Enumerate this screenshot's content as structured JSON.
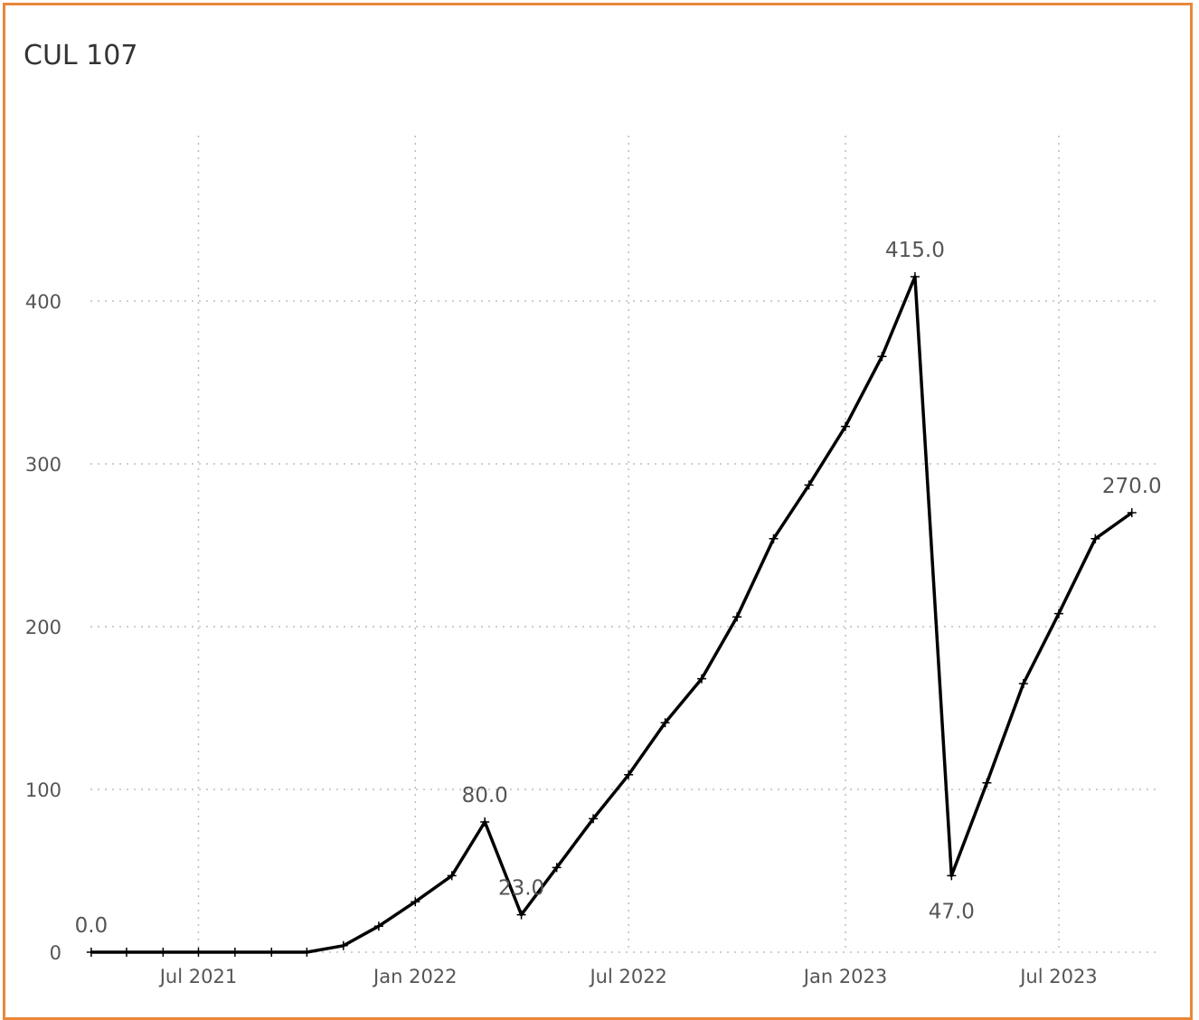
{
  "title": "CUL 107",
  "chart_data": {
    "type": "line",
    "title": "CUL 107",
    "xlabel": "",
    "ylabel": "",
    "ylim": [
      0,
      500
    ],
    "xlim": [
      "2021-03-16",
      "2023-09-15"
    ],
    "y_ticks": [
      0,
      100,
      200,
      300,
      400
    ],
    "x_ticks": [
      {
        "date": "2021-07-01",
        "label": "Jul 2021"
      },
      {
        "date": "2022-01-01",
        "label": "Jan 2022"
      },
      {
        "date": "2022-07-01",
        "label": "Jul 2022"
      },
      {
        "date": "2023-01-01",
        "label": "Jan 2023"
      },
      {
        "date": "2023-07-01",
        "label": "Jul 2023"
      }
    ],
    "grid": true,
    "line_color": "#000000",
    "marker": "plus",
    "series": [
      {
        "x": [
          "2021-04-01",
          "2021-05-01",
          "2021-06-01",
          "2021-07-01",
          "2021-08-01",
          "2021-09-01",
          "2021-10-01",
          "2021-11-01",
          "2021-12-01",
          "2022-01-01",
          "2022-02-01",
          "2022-03-01",
          "2022-04-01",
          "2022-05-01",
          "2022-06-01",
          "2022-07-01",
          "2022-08-01",
          "2022-09-01",
          "2022-10-01",
          "2022-11-01",
          "2022-12-01",
          "2023-01-01",
          "2023-02-01",
          "2023-03-01",
          "2023-04-01",
          "2023-05-01",
          "2023-06-01",
          "2023-07-01",
          "2023-08-01",
          "2023-09-01"
        ],
        "values": [
          0,
          0,
          0,
          0,
          0,
          0,
          0,
          4,
          16,
          31,
          47,
          80,
          23,
          52,
          82,
          109,
          141,
          168,
          206,
          254,
          287,
          323,
          366,
          415,
          47,
          104,
          165,
          208,
          254,
          270
        ]
      }
    ],
    "annotations": [
      {
        "date": "2021-04-01",
        "value": 0,
        "text": "0.0",
        "position": "above"
      },
      {
        "date": "2022-03-01",
        "value": 80,
        "text": "80.0",
        "position": "above"
      },
      {
        "date": "2022-04-01",
        "value": 23,
        "text": "23.0",
        "position": "above"
      },
      {
        "date": "2023-03-01",
        "value": 415,
        "text": "415.0",
        "position": "above"
      },
      {
        "date": "2023-04-01",
        "value": 47,
        "text": "47.0",
        "position": "below"
      },
      {
        "date": "2023-09-01",
        "value": 270,
        "text": "270.0",
        "position": "above"
      }
    ]
  }
}
